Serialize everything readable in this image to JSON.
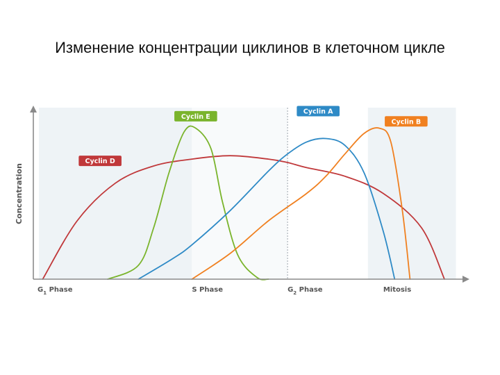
{
  "slide": {
    "title": "Изменение концентрации циклинов в клеточном цикле"
  },
  "chart_data": {
    "type": "line",
    "title": "Изменение концентрации циклинов в клеточном цикле",
    "ylabel": "Concentration",
    "xlabel": "",
    "x_ticks": [
      {
        "label_main": "G",
        "label_sub": "1",
        "label_rest": " Phase",
        "x": 0
      },
      {
        "label_main": "S Phase",
        "label_sub": "",
        "label_rest": "",
        "x": 4
      },
      {
        "label_main": "G",
        "label_sub": "2",
        "label_rest": " Phase",
        "x": 6.5
      },
      {
        "label_main": "Mitosis",
        "label_sub": "",
        "label_rest": "",
        "x": 9
      }
    ],
    "xlim": [
      0,
      11
    ],
    "ylim": [
      0,
      10
    ],
    "grid": false,
    "phase_bands": [
      {
        "from": 0,
        "to": 4,
        "shade": "#eef3f6"
      },
      {
        "from": 4,
        "to": 6.5,
        "shade": "#f8fafb"
      },
      {
        "from": 6.5,
        "to": 8.6,
        "shade": "#ffffff"
      },
      {
        "from": 8.6,
        "to": 10.9,
        "shade": "#eef3f6"
      }
    ],
    "divider_x": 6.5,
    "series": [
      {
        "name": "Cyclin D",
        "color": "#c0383a",
        "label_at": [
          1.6,
          6.9
        ],
        "x": [
          0.1,
          1.0,
          2.0,
          3.0,
          4.0,
          5.0,
          6.0,
          6.5,
          7.0,
          8.0,
          9.0,
          10.0,
          10.6
        ],
        "values": [
          0,
          3.4,
          5.6,
          6.6,
          7.0,
          7.2,
          7.0,
          6.8,
          6.5,
          6.0,
          5.0,
          3.0,
          0
        ]
      },
      {
        "name": "Cyclin E",
        "color": "#7ab42c",
        "label_at": [
          4.1,
          9.5
        ],
        "x": [
          1.8,
          2.6,
          3.0,
          3.4,
          3.8,
          4.1,
          4.5,
          4.8,
          5.2,
          5.7,
          6.0
        ],
        "values": [
          0,
          0.8,
          3.0,
          6.2,
          8.6,
          8.8,
          7.6,
          4.5,
          1.4,
          0.1,
          0
        ]
      },
      {
        "name": "Cyclin A",
        "color": "#2e8ac6",
        "label_at": [
          7.3,
          9.8
        ],
        "x": [
          2.6,
          3.5,
          4.0,
          5.0,
          6.0,
          6.5,
          7.0,
          7.5,
          8.0,
          8.5,
          9.0,
          9.3
        ],
        "values": [
          0,
          1.2,
          2.0,
          4.0,
          6.3,
          7.3,
          8.0,
          8.2,
          7.8,
          6.2,
          2.8,
          0
        ]
      },
      {
        "name": "Cyclin B",
        "color": "#f08020",
        "label_at": [
          9.6,
          9.2
        ],
        "x": [
          4.0,
          5.0,
          6.0,
          7.0,
          7.5,
          8.0,
          8.5,
          8.9,
          9.2,
          9.5,
          9.7
        ],
        "values": [
          0,
          1.5,
          3.4,
          5.0,
          6.0,
          7.3,
          8.5,
          8.8,
          8.0,
          4.0,
          0
        ]
      }
    ]
  }
}
